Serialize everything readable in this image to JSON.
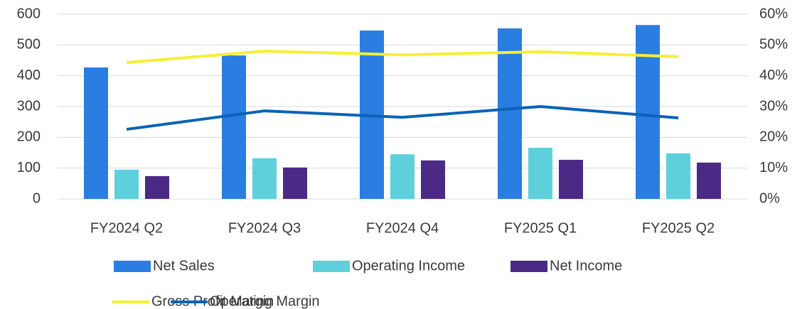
{
  "chart_data": {
    "type": "bar-line",
    "categories": [
      "FY2024 Q2",
      "FY2024 Q3",
      "FY2024 Q4",
      "FY2025 Q1",
      "FY2025 Q2"
    ],
    "series": [
      {
        "name": "Net Sales",
        "type": "bar",
        "color": "#2a7de1",
        "values": [
          427,
          466,
          547,
          554,
          565
        ]
      },
      {
        "name": "Operating Income",
        "type": "bar",
        "color": "#5dd0dc",
        "values": [
          95,
          132,
          145,
          166,
          148
        ]
      },
      {
        "name": "Net Income",
        "type": "bar",
        "color": "#4b2a86",
        "values": [
          74,
          102,
          125,
          127,
          118
        ]
      },
      {
        "name": "Gross Profit Margin",
        "type": "line",
        "axis": "y2",
        "color": "#f5ef35",
        "values": [
          44.3,
          48.0,
          46.8,
          47.8,
          46.2
        ]
      },
      {
        "name": "Operating Margin",
        "type": "line",
        "axis": "y2",
        "color": "#0a63b8",
        "values": [
          22.6,
          28.6,
          26.5,
          30.0,
          26.3
        ]
      }
    ],
    "ylim": [
      0,
      600
    ],
    "yticks": [
      0,
      100,
      200,
      300,
      400,
      500,
      600
    ],
    "y2lim": [
      0,
      60
    ],
    "y2ticks": [
      {
        "value": 0,
        "label": "0%"
      },
      {
        "value": 10,
        "label": "10%"
      },
      {
        "value": 20,
        "label": "20%"
      },
      {
        "value": 30,
        "label": "30%"
      },
      {
        "value": 40,
        "label": "40%"
      },
      {
        "value": 50,
        "label": "50%"
      },
      {
        "value": 60,
        "label": "60%"
      }
    ],
    "grid": true,
    "legend": "bottom"
  }
}
